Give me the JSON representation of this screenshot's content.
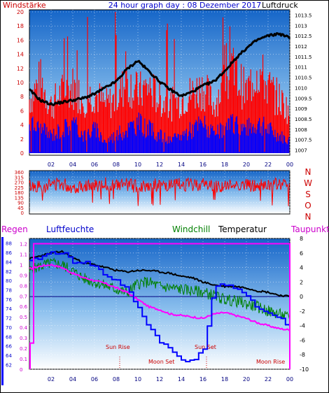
{
  "header": {
    "left_label": "Windstärke",
    "title": "24 hour graph day : 08 Dezember 2017",
    "right_label": "Luftdruck"
  },
  "wind_dir": {
    "letters": [
      "N",
      "W",
      "S",
      "O",
      "N"
    ]
  },
  "bottom_header": {
    "regen": "Regen",
    "luftfeuchte": "Luftfeuchte",
    "windchill": "Windchill",
    "temperatur": "Temperatur",
    "taupunkt": "Taupunkt"
  },
  "events": {
    "sun_rise": "Sun Rise",
    "sun_set": "Sun Set",
    "moon_set": "Moon Set",
    "moon_rise": "Moon Rise"
  },
  "colors": {
    "wind_speed": "#ff0000",
    "gust": "#0000ff",
    "pressure": "#000000",
    "regen": "#ff00ff",
    "humidity": "#0000ff",
    "windchill": "#008000",
    "temperature": "#000000",
    "dewpoint": "#ff00ff",
    "bg_top": "#1a6fd0",
    "bg_bottom": "#ffffff"
  },
  "chart_data": [
    {
      "type": "line",
      "name": "wind_and_pressure",
      "x_ticks": [
        "02",
        "04",
        "06",
        "08",
        "10",
        "12",
        "14",
        "16",
        "18",
        "20",
        "22",
        "00"
      ],
      "left_axis": {
        "ticks": [
          0,
          2,
          4,
          6,
          8,
          10,
          12,
          14,
          16,
          18,
          20
        ]
      },
      "right_axis": {
        "ticks": [
          "1007",
          "1007.5",
          "1008",
          "1008.5",
          "1009",
          "1009.5",
          "1010",
          "1010.5",
          "1011",
          "1011.5",
          "1012",
          "1012.5",
          "1013",
          "1013.5"
        ]
      },
      "pressure_series": {
        "x": [
          0,
          1,
          2,
          3,
          4,
          5,
          6,
          7,
          8,
          9,
          10,
          11,
          12,
          13,
          14,
          15,
          16,
          17,
          18,
          19,
          20,
          21,
          22,
          23,
          24
        ],
        "y": [
          1009.9,
          1009.4,
          1009.2,
          1009.3,
          1009.4,
          1009.5,
          1009.7,
          1010.0,
          1010.3,
          1010.9,
          1011.3,
          1010.8,
          1010.3,
          1009.9,
          1009.6,
          1009.8,
          1010.1,
          1010.3,
          1010.8,
          1011.4,
          1011.9,
          1012.3,
          1012.5,
          1012.6,
          1012.4
        ]
      },
      "wind_series": {
        "x": [
          0,
          1,
          2,
          3,
          4,
          5,
          6,
          7,
          8,
          9,
          10,
          11,
          12,
          13,
          14,
          15,
          16,
          17,
          18,
          19,
          20,
          21,
          22,
          23,
          24
        ],
        "y": [
          9,
          12,
          8,
          10,
          11,
          9,
          10,
          8,
          9,
          12,
          10,
          11,
          9,
          8,
          9,
          10,
          11,
          8,
          12,
          13,
          10,
          14,
          11,
          9,
          7
        ]
      },
      "gust_series": {
        "x": [
          0,
          1,
          2,
          3,
          4,
          5,
          6,
          7,
          8,
          9,
          10,
          11,
          12,
          13,
          14,
          15,
          16,
          17,
          18,
          19,
          20,
          21,
          22,
          23,
          24
        ],
        "y": [
          5,
          4,
          3,
          4,
          5,
          3,
          4,
          2,
          3,
          4,
          5,
          4,
          3,
          2,
          3,
          4,
          5,
          3,
          4,
          5,
          4,
          5,
          4,
          3,
          2
        ]
      }
    },
    {
      "type": "line",
      "name": "wind_direction",
      "left_axis": {
        "ticks": [
          0,
          45,
          90,
          135,
          180,
          225,
          270,
          315,
          360
        ]
      },
      "series": {
        "x": [
          0,
          1,
          2,
          3,
          4,
          5,
          6,
          7,
          8,
          9,
          10,
          11,
          12,
          13,
          14,
          15,
          16,
          17,
          18,
          19,
          20,
          21,
          22,
          23,
          24
        ],
        "y": [
          240,
          230,
          250,
          260,
          220,
          245,
          235,
          255,
          240,
          250,
          230,
          245,
          240,
          235,
          250,
          245,
          255,
          240,
          230,
          250,
          245,
          235,
          240,
          250,
          245
        ]
      }
    },
    {
      "type": "line",
      "name": "temperature_humidity",
      "x_ticks": [
        "02",
        "04",
        "06",
        "08",
        "10",
        "12",
        "14",
        "16",
        "18",
        "20",
        "22",
        "00"
      ],
      "humidity_axis": {
        "ticks": [
          62,
          64,
          66,
          68,
          70,
          72,
          74,
          76,
          78,
          80,
          82,
          84,
          86,
          88
        ]
      },
      "regen_axis": {
        "ticks": [
          "0",
          "0.1",
          "0.2",
          "0.3",
          "0.4",
          "0.5",
          "0.6",
          "0.7",
          "0.8",
          "0.9",
          "1",
          "1.1",
          "1.2"
        ]
      },
      "temp_axis": {
        "ticks": [
          -10,
          -8,
          -6,
          -4,
          -2,
          0,
          2,
          4,
          6,
          8
        ]
      },
      "temperature": {
        "x": [
          0,
          1,
          2,
          3,
          4,
          5,
          6,
          7,
          8,
          9,
          10,
          11,
          12,
          13,
          14,
          15,
          16,
          17,
          18,
          19,
          20,
          21,
          22,
          23,
          24
        ],
        "y": [
          5.2,
          5.6,
          6.0,
          6.2,
          5.4,
          4.6,
          4.4,
          4.0,
          3.6,
          3.4,
          3.6,
          3.6,
          3.4,
          3.2,
          2.8,
          2.6,
          2.0,
          1.6,
          1.4,
          1.4,
          1.2,
          0.8,
          0.6,
          0.2,
          0.0
        ]
      },
      "windchill": {
        "x": [
          0,
          1,
          2,
          3,
          4,
          5,
          6,
          7,
          8,
          9,
          10,
          11,
          12,
          13,
          14,
          15,
          16,
          17,
          18,
          19,
          20,
          21,
          22,
          23,
          24
        ],
        "y": [
          3.5,
          4.2,
          4.6,
          4.4,
          3.5,
          2.5,
          2.0,
          1.5,
          1.0,
          0.5,
          1.8,
          2.0,
          1.4,
          1.2,
          1.0,
          0.8,
          0.6,
          0.2,
          -0.4,
          -0.6,
          -1.0,
          -1.4,
          -2.0,
          -2.4,
          -3.0
        ]
      },
      "dewpoint": {
        "x": [
          0,
          1,
          2,
          3,
          4,
          5,
          6,
          7,
          8,
          9,
          10,
          11,
          12,
          13,
          14,
          15,
          16,
          17,
          18,
          19,
          20,
          21,
          22,
          23,
          24
        ],
        "y": [
          3.8,
          4.2,
          4.4,
          4.0,
          3.2,
          2.6,
          2.2,
          1.8,
          1.2,
          0.6,
          -0.4,
          -1.4,
          -1.8,
          -2.4,
          -2.6,
          -2.8,
          -3.0,
          -2.4,
          -2.2,
          -2.6,
          -3.0,
          -3.6,
          -4.0,
          -4.4,
          -4.6
        ]
      },
      "humidity": {
        "x": [
          0,
          1,
          2,
          3,
          4,
          5,
          6,
          7,
          8,
          9,
          10,
          11,
          12,
          13,
          14,
          15,
          16,
          17,
          18,
          19,
          20,
          21,
          22,
          23,
          24
        ],
        "y": [
          84,
          85,
          86,
          86,
          84,
          84,
          83,
          81,
          80,
          78,
          74,
          70,
          67,
          65,
          63,
          63,
          65,
          79,
          79,
          78,
          77,
          74,
          73,
          72,
          70
        ]
      },
      "regen": {
        "y": [
          0.25,
          1.2
        ]
      },
      "annotations": [
        "Sun Rise",
        "Sun Set",
        "Moon Set",
        "Moon Rise"
      ]
    }
  ]
}
